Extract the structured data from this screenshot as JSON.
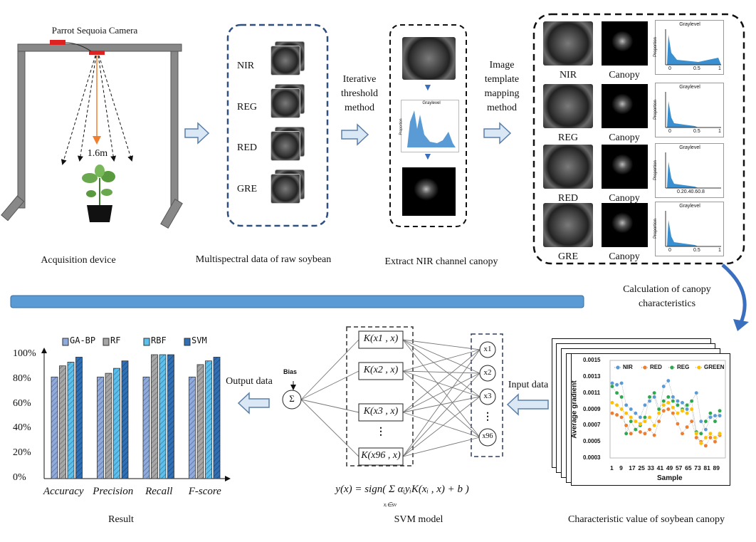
{
  "acquisition": {
    "camera_label": "Parrot Sequoia Camera",
    "height_label": "1.6m",
    "caption": "Acquisition device"
  },
  "multispectral": {
    "channels": [
      "NIR",
      "REG",
      "RED",
      "GRE"
    ],
    "caption": "Multispectral data of raw soybean"
  },
  "step1": {
    "label_lines": [
      "Iterative",
      "threshold",
      "method"
    ]
  },
  "extract": {
    "caption": "Extract NIR channel canopy",
    "hist_title": "Graylevel",
    "hist_ylabel": "Proportion"
  },
  "step2": {
    "label_lines": [
      "Image",
      "template",
      "mapping",
      "method"
    ]
  },
  "mapping": {
    "rows": [
      {
        "channel": "NIR",
        "canopy": "Canopy",
        "hist_title": "Graylevel",
        "hist_ylabel": "Proportion",
        "ticks": [
          "0",
          "0.5",
          "1"
        ]
      },
      {
        "channel": "REG",
        "canopy": "Canopy",
        "hist_title": "Graylevel",
        "hist_ylabel": "Proportion",
        "ticks": [
          "0",
          "0.5",
          "1"
        ]
      },
      {
        "channel": "RED",
        "canopy": "Canopy",
        "hist_title": "Graylevel",
        "hist_ylabel": "Proportion",
        "ticks": [
          "0.20.40.60.8"
        ]
      },
      {
        "channel": "GRE",
        "canopy": "Canopy",
        "hist_title": "Graylevel",
        "hist_ylabel": "Proportion",
        "ticks": [
          "0",
          "0.5",
          "1"
        ]
      }
    ]
  },
  "calc_label_lines": [
    "Calculation of canopy",
    "characteristics"
  ],
  "colors": {
    "divider": "#5b9bd5",
    "arrow_fill": "#dae8f5",
    "arrow_stroke": "#5b7fa8",
    "box_blue": "#2f4f7f"
  },
  "input_label": "Input data",
  "output_label": "Output data",
  "svm": {
    "bias_label": "Bias",
    "sum_symbol": "Σ",
    "kernels": [
      "K(x1 , x)",
      "K(x2 , x)",
      "K(x3 , x)",
      "K(x96 , x)"
    ],
    "inputs": [
      "x1",
      "x2",
      "x3",
      "x96"
    ],
    "ellipsis": "⋮",
    "formula": "y(x) = sign( Σ αᵢyᵢK(xᵢ , x) + b )",
    "formula_sub": "xᵢ∈sv",
    "caption": "SVM model"
  },
  "result_caption": "Result",
  "char_caption": "Characteristic value of soybean canopy",
  "chart_data": [
    {
      "type": "bar",
      "categories": [
        "Accuracy",
        "Precision",
        "Recall",
        "F-score"
      ],
      "series": [
        {
          "name": "GA-BP",
          "color": "#8faadc",
          "values": [
            82,
            82,
            82,
            82
          ]
        },
        {
          "name": "RF",
          "color": "#a6a6a6",
          "values": [
            91,
            85,
            100,
            92
          ]
        },
        {
          "name": "RBF",
          "color": "#5bc0ee",
          "values": [
            94,
            89,
            100,
            95
          ]
        },
        {
          "name": "SVM",
          "color": "#2e6fb5",
          "values": [
            98,
            95,
            100,
            98
          ]
        }
      ],
      "yticks": [
        "0%",
        "20%",
        "40%",
        "60%",
        "80%",
        "100%"
      ],
      "ylim": [
        0,
        100
      ],
      "legend": "top"
    },
    {
      "type": "line",
      "xlabel": "Sample",
      "ylabel": "Average gradient",
      "ylim": [
        0.0003,
        0.0015
      ],
      "yticks": [
        "0.0003",
        "0.0005",
        "0.0007",
        "0.0009",
        "0.0011",
        "0.0013",
        "0.0015"
      ],
      "xticks": [
        "1",
        "9",
        "17",
        "25",
        "33",
        "41",
        "49",
        "57",
        "65",
        "73",
        "81",
        "89"
      ],
      "x": [
        1,
        5,
        9,
        13,
        17,
        21,
        25,
        29,
        33,
        37,
        41,
        45,
        49,
        53,
        57,
        61,
        65,
        69,
        73,
        77,
        81,
        85,
        89,
        93
      ],
      "series": [
        {
          "name": "NIR",
          "color": "#5b9bd5",
          "values": [
            0.00122,
            0.0012,
            0.00122,
            0.00095,
            0.0009,
            0.00085,
            0.0008,
            0.00095,
            0.001,
            0.00105,
            0.00085,
            0.00118,
            0.00125,
            0.00105,
            0.001,
            0.00098,
            0.0009,
            0.001,
            0.0011,
            0.00075,
            0.00065,
            0.0008,
            0.00082,
            0.00082
          ]
        },
        {
          "name": "RED",
          "color": "#ed7d31",
          "values": [
            0.00085,
            0.00083,
            0.0008,
            0.0007,
            0.0006,
            0.00065,
            0.00062,
            0.0006,
            0.00065,
            0.00058,
            0.00075,
            0.00088,
            0.0009,
            0.00085,
            0.00072,
            0.0006,
            0.00068,
            0.00075,
            0.00055,
            0.0005,
            0.00045,
            0.00055,
            0.0005,
            0.00058
          ]
        },
        {
          "name": "REG",
          "color": "#2ea84f",
          "values": [
            0.00118,
            0.0011,
            0.00105,
            0.0006,
            0.00075,
            0.00065,
            0.0007,
            0.0008,
            0.00105,
            0.0011,
            0.0009,
            0.001,
            0.00105,
            0.001,
            0.00095,
            0.0009,
            0.00095,
            0.001,
            0.00062,
            0.0006,
            0.00075,
            0.00085,
            0.00075,
            0.00088
          ]
        },
        {
          "name": "GREEN",
          "color": "#ffc000",
          "values": [
            0.00098,
            0.00095,
            0.0009,
            0.00085,
            0.0008,
            0.00075,
            0.00072,
            0.00075,
            0.0008,
            0.0007,
            0.00085,
            0.00095,
            0.00098,
            0.00092,
            0.00085,
            0.00088,
            0.00085,
            0.0009,
            0.0006,
            0.00048,
            0.00055,
            0.0006,
            0.00055,
            0.0006
          ]
        }
      ],
      "legend": "top"
    }
  ]
}
